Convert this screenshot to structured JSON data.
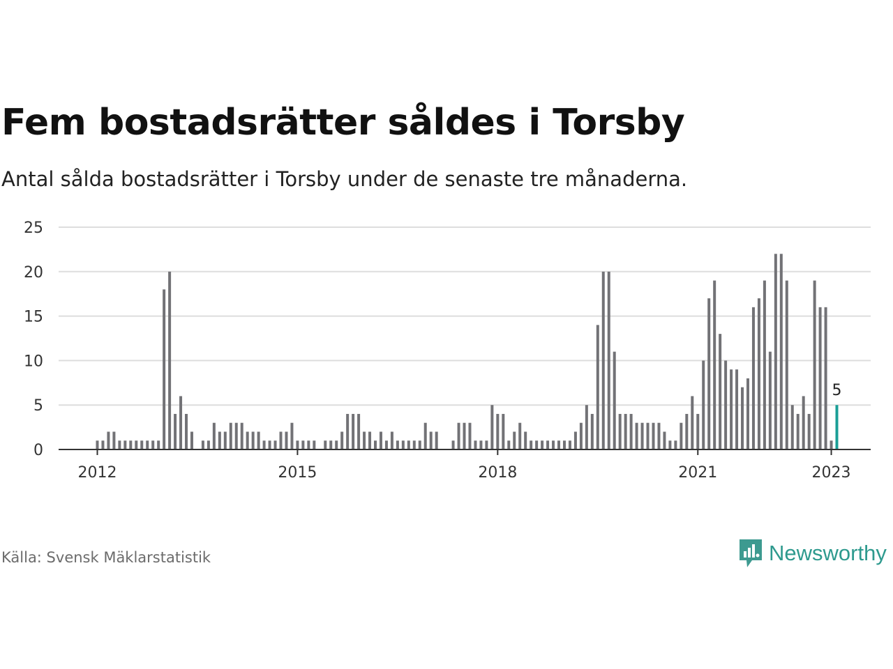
{
  "title": "Fem bostadsrätter såldes i Torsby",
  "subtitle": "Antal sålda bostadsrätter i Torsby under de senaste tre månaderna.",
  "source": "Källa: Svensk Mäklarstatistik",
  "brand": {
    "name": "Newsworthy",
    "icon": "newsworthy-logo-icon",
    "color": "#3d9a90"
  },
  "colors": {
    "bar": "#727276",
    "highlight": "#1a9e96",
    "grid": "#dddddd",
    "axis": "#333333"
  },
  "chart_data": {
    "type": "bar",
    "title": "Fem bostadsrätter såldes i Torsby",
    "xlabel": "",
    "ylabel": "",
    "ylim": [
      0,
      25
    ],
    "yticks": [
      "0",
      "5",
      "10",
      "15",
      "20",
      "25"
    ],
    "xticks": [
      "2012",
      "2015",
      "2018",
      "2021",
      "2023"
    ],
    "grid": true,
    "period": "2012-01 to 2023-01, monthly",
    "values": [
      1,
      1,
      2,
      2,
      1,
      1,
      1,
      1,
      1,
      1,
      1,
      1,
      18,
      20,
      4,
      6,
      4,
      2,
      0,
      1,
      1,
      3,
      2,
      2,
      3,
      3,
      3,
      2,
      2,
      2,
      1,
      1,
      1,
      2,
      2,
      3,
      1,
      1,
      1,
      1,
      0,
      1,
      1,
      1,
      2,
      4,
      4,
      4,
      2,
      2,
      1,
      2,
      1,
      2,
      1,
      1,
      1,
      1,
      1,
      3,
      2,
      2,
      0,
      0,
      1,
      3,
      3,
      3,
      1,
      1,
      1,
      5,
      4,
      4,
      1,
      2,
      3,
      2,
      1,
      1,
      1,
      1,
      1,
      1,
      1,
      1,
      2,
      3,
      5,
      4,
      14,
      20,
      20,
      11,
      4,
      4,
      4,
      3,
      3,
      3,
      3,
      3,
      2,
      1,
      1,
      3,
      4,
      6,
      4,
      10,
      17,
      19,
      13,
      10,
      9,
      9,
      7,
      8,
      16,
      17,
      19,
      11,
      22,
      22,
      19,
      5,
      4,
      6,
      4,
      19,
      16,
      16,
      1,
      5
    ],
    "highlight_last": true,
    "annotation": "5"
  }
}
